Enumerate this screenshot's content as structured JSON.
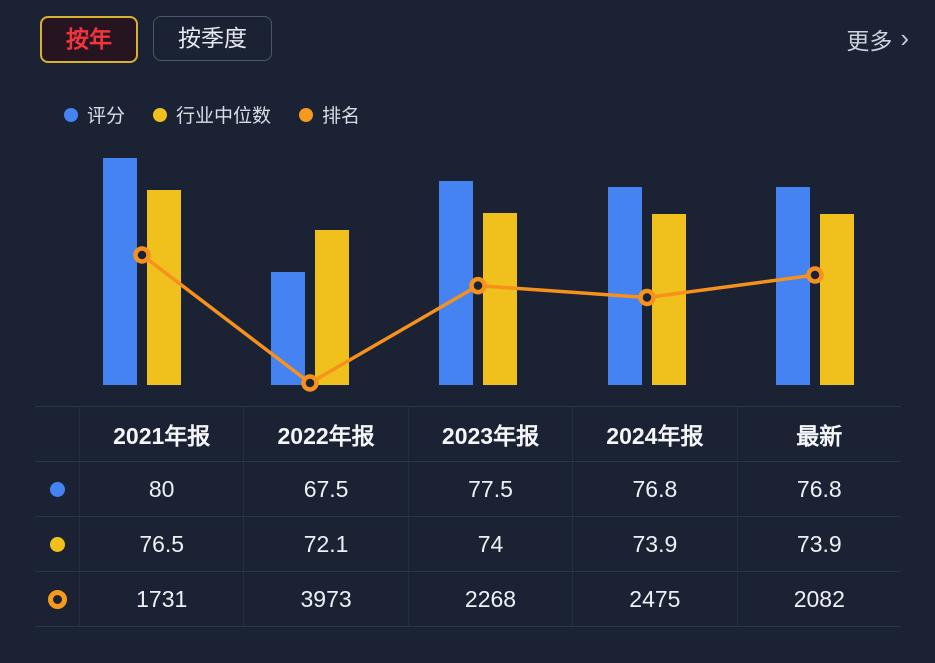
{
  "tabs": {
    "year": "按年",
    "quarter": "按季度"
  },
  "more": {
    "label": "更多",
    "chevron": "›"
  },
  "legend": [
    {
      "name": "score",
      "label": "评分",
      "color": "#4583f2"
    },
    {
      "name": "median",
      "label": "行业中位数",
      "color": "#f0c11d"
    },
    {
      "name": "rank",
      "label": "排名",
      "color": "#f6991c"
    }
  ],
  "colors": {
    "background": "#1a2234",
    "score_bar": "#4583f2",
    "median_bar": "#f0c11d",
    "rank_line": "#f6911c"
  },
  "chart_data": {
    "type": "bar",
    "categories": [
      "2021年报",
      "2022年报",
      "2023年报",
      "2024年报",
      "最新"
    ],
    "series": [
      {
        "name": "评分",
        "type": "bar",
        "color": "#4583f2",
        "values": [
          80,
          67.5,
          77.5,
          76.8,
          76.8
        ]
      },
      {
        "name": "行业中位数",
        "type": "bar",
        "color": "#f0c11d",
        "values": [
          76.5,
          72.1,
          74,
          73.9,
          73.9
        ]
      },
      {
        "name": "排名",
        "type": "line",
        "color": "#f6911c",
        "values": [
          1731,
          3973,
          2268,
          2475,
          2082
        ],
        "axis_inverted": true
      }
    ],
    "title": "",
    "xlabel": "",
    "ylabel": "",
    "bar_axis_range": [
      55,
      82
    ],
    "grid": false,
    "legend_position": "top-left"
  },
  "table": {
    "headers": [
      "2021年报",
      "2022年报",
      "2023年报",
      "2024年报",
      "最新"
    ],
    "rows": [
      {
        "name": "score",
        "marker": "dot-blue",
        "color": "#4583f2",
        "values": [
          "80",
          "67.5",
          "77.5",
          "76.8",
          "76.8"
        ]
      },
      {
        "name": "median",
        "marker": "dot-yellow",
        "color": "#f0c11d",
        "values": [
          "76.5",
          "72.1",
          "74",
          "73.9",
          "73.9"
        ]
      },
      {
        "name": "rank",
        "marker": "ring-orange",
        "color": "#f6991c",
        "values": [
          "1731",
          "3973",
          "2268",
          "2475",
          "2082"
        ]
      }
    ]
  }
}
